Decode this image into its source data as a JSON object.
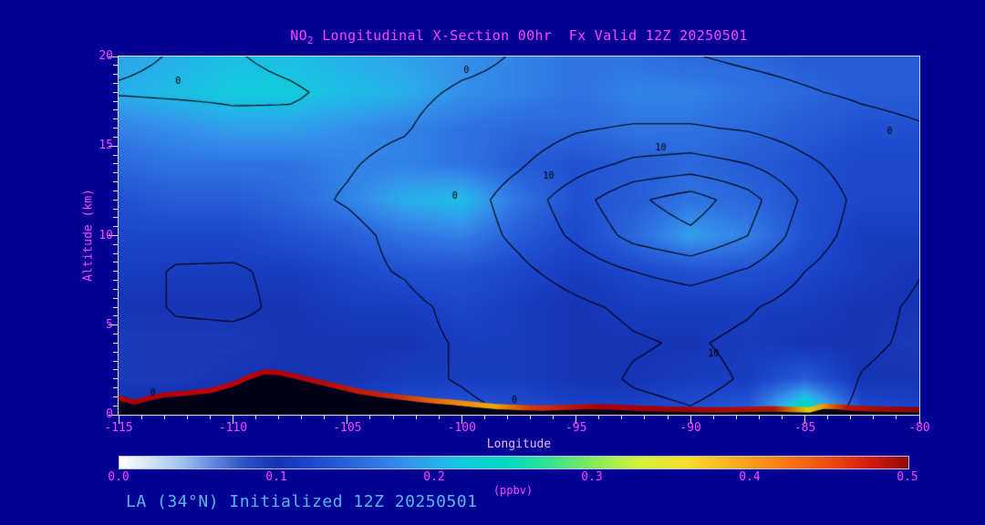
{
  "window": {
    "background": "#000095"
  },
  "title": {
    "prefix": "NO",
    "subscript": "2",
    "rest": " Longitudinal X-Section 00hr  Fx Valid 12Z 20250501",
    "color": "#ff46ff"
  },
  "footer": {
    "text": "LA (34°N) Initialized 12Z 20250501",
    "color": "#55b8f0"
  },
  "chart_data": {
    "type": "heatmap",
    "title": "NO2 Longitudinal X-Section 00hr  Fx Valid 12Z 20250501",
    "xlabel": "Longitude",
    "ylabel": "Altitude (km)",
    "xlim": [
      -115,
      -80
    ],
    "ylim": [
      0,
      20
    ],
    "x_ticks": [
      -115,
      -110,
      -105,
      -100,
      -95,
      -90,
      -85,
      -80
    ],
    "y_ticks": [
      0,
      5,
      10,
      15,
      20
    ],
    "grid": false,
    "colorbar": {
      "min": 0.0,
      "max": 0.5,
      "tick_labels": [
        "0.0",
        "0.1",
        "0.2",
        "0.3",
        "0.4",
        "0.5"
      ],
      "label": "(ppbv)"
    },
    "colormap": [
      [
        0.0,
        "#ffffff"
      ],
      [
        0.02,
        "#d2e4f5"
      ],
      [
        0.04,
        "#9fc3ee"
      ],
      [
        0.06,
        "#5f86de"
      ],
      [
        0.08,
        "#2b50c4"
      ],
      [
        0.1,
        "#1534b6"
      ],
      [
        0.12,
        "#1c46cc"
      ],
      [
        0.14,
        "#265cd8"
      ],
      [
        0.16,
        "#2f74e2"
      ],
      [
        0.18,
        "#3590ea"
      ],
      [
        0.2,
        "#27b0ea"
      ],
      [
        0.22,
        "#12cbdd"
      ],
      [
        0.245,
        "#02d9c0"
      ],
      [
        0.27,
        "#30e194"
      ],
      [
        0.3,
        "#85eb5c"
      ],
      [
        0.33,
        "#d7f23a"
      ],
      [
        0.36,
        "#f8de2b"
      ],
      [
        0.39,
        "#f9ae1f"
      ],
      [
        0.42,
        "#f87d15"
      ],
      [
        0.45,
        "#ee4a11"
      ],
      [
        0.475,
        "#d61d0d"
      ],
      [
        0.5,
        "#8e0a0a"
      ]
    ],
    "field": {
      "units": "ppbv",
      "x": [
        -115,
        -112.5,
        -110,
        -107.5,
        -105,
        -102.5,
        -100,
        -97.5,
        -95,
        -92.5,
        -90,
        -87.5,
        -85,
        -82.5,
        -80
      ],
      "y": [
        0,
        2,
        4,
        6,
        8,
        10,
        12,
        14,
        16,
        18,
        20
      ],
      "values": [
        [
          0.11,
          0.11,
          0.12,
          0.12,
          0.12,
          0.13,
          0.14,
          0.13,
          0.12,
          0.12,
          0.13,
          0.14,
          0.28,
          0.13,
          0.12
        ],
        [
          0.095,
          0.095,
          0.1,
          0.1,
          0.1,
          0.11,
          0.11,
          0.11,
          0.1,
          0.1,
          0.11,
          0.11,
          0.14,
          0.1,
          0.1
        ],
        [
          0.095,
          0.095,
          0.095,
          0.1,
          0.1,
          0.1,
          0.11,
          0.11,
          0.1,
          0.1,
          0.1,
          0.11,
          0.1,
          0.1,
          0.095
        ],
        [
          0.1,
          0.1,
          0.1,
          0.1,
          0.11,
          0.11,
          0.12,
          0.11,
          0.1,
          0.11,
          0.11,
          0.11,
          0.11,
          0.1,
          0.1
        ],
        [
          0.11,
          0.11,
          0.11,
          0.11,
          0.12,
          0.13,
          0.13,
          0.12,
          0.11,
          0.12,
          0.13,
          0.13,
          0.12,
          0.11,
          0.1
        ],
        [
          0.12,
          0.12,
          0.12,
          0.13,
          0.14,
          0.16,
          0.17,
          0.14,
          0.12,
          0.15,
          0.19,
          0.17,
          0.13,
          0.11,
          0.11
        ],
        [
          0.13,
          0.14,
          0.14,
          0.15,
          0.17,
          0.2,
          0.21,
          0.16,
          0.13,
          0.14,
          0.16,
          0.15,
          0.13,
          0.12,
          0.12
        ],
        [
          0.15,
          0.16,
          0.16,
          0.16,
          0.17,
          0.17,
          0.16,
          0.14,
          0.13,
          0.14,
          0.15,
          0.14,
          0.13,
          0.12,
          0.12
        ],
        [
          0.17,
          0.18,
          0.19,
          0.19,
          0.18,
          0.17,
          0.16,
          0.15,
          0.15,
          0.16,
          0.16,
          0.15,
          0.14,
          0.13,
          0.13
        ],
        [
          0.2,
          0.21,
          0.22,
          0.22,
          0.21,
          0.2,
          0.18,
          0.17,
          0.16,
          0.17,
          0.17,
          0.16,
          0.15,
          0.14,
          0.14
        ],
        [
          0.19,
          0.2,
          0.21,
          0.21,
          0.2,
          0.19,
          0.18,
          0.17,
          0.16,
          0.16,
          0.15,
          0.15,
          0.14,
          0.14,
          0.14
        ]
      ]
    },
    "contours": {
      "levels": [
        0,
        10,
        20,
        30,
        40
      ],
      "values": [
        [
          0.5,
          -3,
          -2,
          -2,
          -2,
          -2,
          -1,
          0.3,
          3,
          7,
          9,
          6,
          2,
          -1,
          -2
        ],
        [
          -4,
          -3,
          -2,
          -2,
          -2,
          -1,
          0.3,
          2,
          6,
          11,
          13,
          9,
          4,
          -0.3,
          -2
        ],
        [
          -4,
          -3,
          -3,
          -2,
          -2,
          -1,
          0.3,
          2,
          5,
          9,
          11,
          8,
          4,
          1,
          -1
        ],
        [
          -5,
          1,
          2,
          -2,
          -2,
          -1,
          1,
          4,
          8,
          12,
          14,
          11,
          6,
          2,
          -1
        ],
        [
          -5,
          1,
          1,
          -2,
          -1,
          0.3,
          3,
          8,
          14,
          20,
          24,
          19,
          10,
          4,
          0.3
        ],
        [
          -5,
          -4,
          -3,
          -2,
          -1,
          1,
          5,
          12,
          22,
          33,
          38,
          30,
          15,
          6,
          1
        ],
        [
          -5,
          -4,
          -3,
          -1,
          0.3,
          2,
          6,
          14,
          26,
          38,
          45,
          34,
          18,
          7,
          2
        ],
        [
          -5,
          -4,
          -3,
          -1,
          -0.3,
          1,
          4,
          9,
          16,
          22,
          24,
          20,
          12,
          5,
          1
        ],
        [
          -5,
          -4,
          -2,
          -1,
          -1,
          -0.3,
          2,
          5,
          9,
          11,
          11,
          9,
          5,
          2,
          0.5
        ],
        [
          0.5,
          1,
          1.2,
          0.5,
          -1,
          -1,
          0.5,
          1,
          2,
          3,
          3,
          2,
          0.5,
          -1,
          -2
        ],
        [
          -1,
          0.3,
          0.3,
          -1,
          -2,
          -2,
          -1,
          0.3,
          1,
          1,
          0.3,
          -1,
          -2,
          -3,
          -3
        ]
      ],
      "labels": [
        {
          "text": "0",
          "lon": -112.4,
          "km": 18.6
        },
        {
          "text": "0",
          "lon": -99.8,
          "km": 19.2
        },
        {
          "text": "10",
          "lon": -96.2,
          "km": 13.3
        },
        {
          "text": "0",
          "lon": -100.3,
          "km": 12.2
        },
        {
          "text": "10",
          "lon": -91.3,
          "km": 14.9
        },
        {
          "text": "10",
          "lon": -89.0,
          "km": 3.4
        },
        {
          "text": "0",
          "lon": -113.5,
          "km": 1.2
        },
        {
          "text": "0",
          "lon": -97.7,
          "km": 0.8
        },
        {
          "text": "0",
          "lon": -81.3,
          "km": 15.8
        }
      ]
    },
    "terrain": {
      "color": "#000018",
      "points": [
        [
          -115,
          0.78
        ],
        [
          -114.3,
          0.55
        ],
        [
          -113.6,
          0.8
        ],
        [
          -113,
          0.95
        ],
        [
          -112,
          1.05
        ],
        [
          -111,
          1.2
        ],
        [
          -110,
          1.55
        ],
        [
          -109.3,
          1.95
        ],
        [
          -108.6,
          2.25
        ],
        [
          -108,
          2.2
        ],
        [
          -107.3,
          2.0
        ],
        [
          -106.5,
          1.75
        ],
        [
          -105.5,
          1.45
        ],
        [
          -104.5,
          1.15
        ],
        [
          -103.5,
          0.95
        ],
        [
          -102.5,
          0.8
        ],
        [
          -101.5,
          0.65
        ],
        [
          -100.5,
          0.55
        ],
        [
          -99.5,
          0.42
        ],
        [
          -98.5,
          0.3
        ],
        [
          -97.5,
          0.25
        ],
        [
          -96.5,
          0.22
        ],
        [
          -95.5,
          0.25
        ],
        [
          -94.5,
          0.3
        ],
        [
          -93.5,
          0.28
        ],
        [
          -92.5,
          0.22
        ],
        [
          -91.5,
          0.18
        ],
        [
          -90.5,
          0.15
        ],
        [
          -89.5,
          0.12
        ],
        [
          -88.5,
          0.12
        ],
        [
          -87.5,
          0.15
        ],
        [
          -86.5,
          0.18
        ],
        [
          -85.5,
          0.14
        ],
        [
          -84.8,
          0.12
        ],
        [
          -84.2,
          0.32
        ],
        [
          -83.6,
          0.3
        ],
        [
          -83,
          0.22
        ],
        [
          -82,
          0.18
        ],
        [
          -81,
          0.14
        ],
        [
          -80,
          0.12
        ]
      ]
    },
    "surface_layer": {
      "thickness_km": 0.3,
      "stops": [
        [
          -115,
          "#a80000"
        ],
        [
          -110.5,
          "#c40000"
        ],
        [
          -107,
          "#b40000"
        ],
        [
          -103,
          "#cc2a00"
        ],
        [
          -100.2,
          "#f08800"
        ],
        [
          -98.6,
          "#f2a800"
        ],
        [
          -97,
          "#d83800"
        ],
        [
          -94,
          "#b00000"
        ],
        [
          -90,
          "#a00000"
        ],
        [
          -86.3,
          "#b81800"
        ],
        [
          -84.9,
          "#e6cc00"
        ],
        [
          -84.2,
          "#f09800"
        ],
        [
          -83.2,
          "#c01400"
        ],
        [
          -80,
          "#8e0000"
        ]
      ]
    }
  }
}
